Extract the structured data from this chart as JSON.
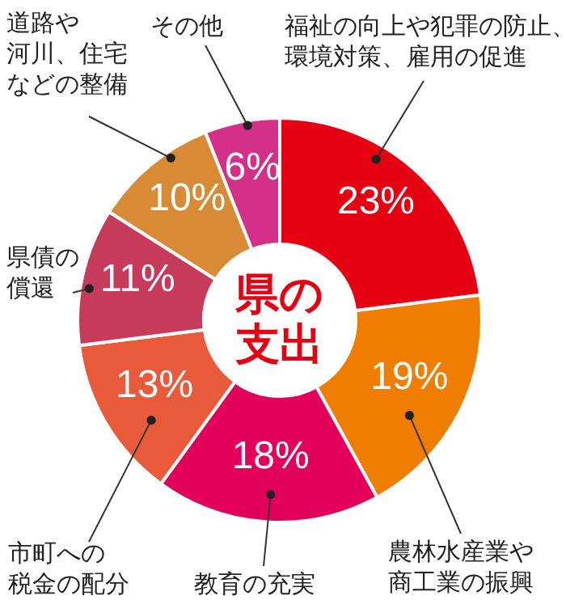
{
  "chart_data": {
    "type": "donut",
    "title": "県の支出",
    "categories": [
      "福祉の向上や犯罪の防止、環境対策、雇用の促進",
      "農林水産業や商工業の振興",
      "教育の充実",
      "市町への税金の配分",
      "県債の償還",
      "道路や河川、住宅などの整備",
      "その他"
    ],
    "values": [
      23,
      19,
      18,
      13,
      11,
      10,
      6
    ],
    "value_labels": [
      "23%",
      "19%",
      "18%",
      "13%",
      "11%",
      "10%",
      "6%"
    ],
    "colors": [
      "#e50012",
      "#ee7d00",
      "#e2005a",
      "#e85a3a",
      "#c63b5a",
      "#d98a35",
      "#d4308a"
    ]
  }
}
